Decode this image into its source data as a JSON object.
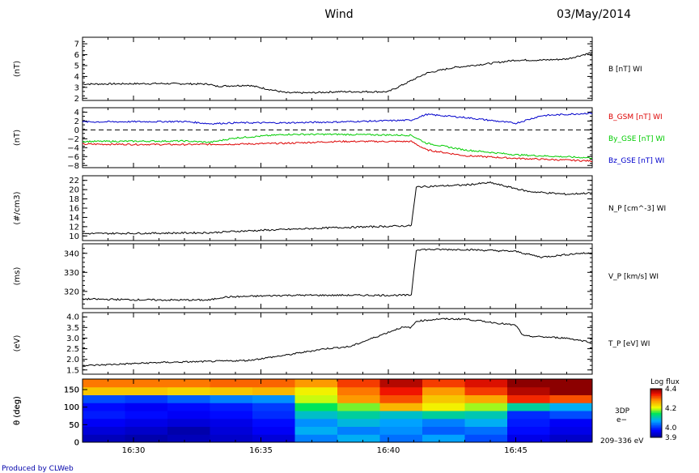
{
  "header": {
    "title": "Wind",
    "date": "03/May/2014"
  },
  "footer": {
    "credit": "Produced by CLWeb"
  },
  "chart_data": [
    {
      "type": "line",
      "ylabel": "(nT)",
      "ylim": [
        1.8,
        7.6
      ],
      "yticks": [
        "2",
        "3",
        "4",
        "5",
        "6",
        "7"
      ],
      "series": [
        {
          "name": "B [nT] WI",
          "color": "#000000",
          "x": [
            0,
            3,
            5,
            5.2,
            6.5,
            8,
            9,
            10,
            12,
            13.5,
            14.5,
            16,
            17,
            18,
            19,
            20
          ],
          "y": [
            3.3,
            3.35,
            3.3,
            3.1,
            3.2,
            2.5,
            2.5,
            2.6,
            2.6,
            4.3,
            4.8,
            5.2,
            5.5,
            5.5,
            5.6,
            6.2
          ]
        }
      ],
      "legend": [
        {
          "label": "B [nT] WI",
          "color": "#000000"
        }
      ]
    },
    {
      "type": "line",
      "ylabel": "(nT)",
      "ylim": [
        -8.5,
        5
      ],
      "yticks": [
        "4",
        "2",
        "0",
        "−2",
        "−4",
        "−6",
        "−8"
      ],
      "zero_line": true,
      "series": [
        {
          "name": "B_GSM [nT] WI",
          "color": "#dd0000",
          "x": [
            0,
            4,
            6,
            8,
            10,
            12.9,
            13.5,
            15,
            17,
            20
          ],
          "y": [
            -3.2,
            -3.3,
            -3.2,
            -3,
            -2.6,
            -2.6,
            -4.5,
            -5.8,
            -6.4,
            -7
          ]
        },
        {
          "name": "By_GSE [nT] WI",
          "color": "#00cc00",
          "x": [
            0,
            4,
            5,
            6,
            8,
            10,
            12.9,
            13.5,
            15,
            17,
            20
          ],
          "y": [
            -2.6,
            -2.5,
            -2.8,
            -1.8,
            -1,
            -1,
            -1.2,
            -3,
            -4.5,
            -5.6,
            -6.3
          ]
        },
        {
          "name": "Bz_GSE [nT] WI",
          "color": "#0000cc",
          "x": [
            0,
            4,
            5,
            6,
            8,
            10,
            12.9,
            13.5,
            15,
            17,
            18,
            20
          ],
          "y": [
            1.8,
            1.9,
            1.4,
            1.6,
            1.6,
            1.8,
            2.2,
            3.5,
            2.8,
            1.5,
            3.2,
            3.8
          ]
        }
      ],
      "legend": [
        {
          "label": "B_GSM [nT] WI",
          "color": "#dd0000"
        },
        {
          "label": "By_GSE [nT] WI",
          "color": "#00cc00"
        },
        {
          "label": "Bz_GSE [nT] WI",
          "color": "#0000cc"
        }
      ]
    },
    {
      "type": "line",
      "ylabel": "(#/cm3)",
      "ylim": [
        9,
        23
      ],
      "yticks": [
        "10",
        "12",
        "14",
        "16",
        "18",
        "20",
        "22"
      ],
      "series": [
        {
          "name": "N_P [cm^-3] WI",
          "color": "#000000",
          "x": [
            0,
            3,
            5,
            6,
            8,
            9,
            10,
            12.9,
            13.1,
            15,
            16,
            17.5,
            19,
            20
          ],
          "y": [
            10.5,
            10.6,
            10.7,
            11,
            11.4,
            11.6,
            11.8,
            12.2,
            20.6,
            21,
            21.5,
            19.6,
            19,
            19.3
          ]
        }
      ],
      "legend": [
        {
          "label": "N_P [cm^-3] WI",
          "color": "#000000"
        }
      ]
    },
    {
      "type": "line",
      "ylabel": "(ms)",
      "ylim": [
        311,
        345
      ],
      "yticks": [
        "320",
        "330",
        "340"
      ],
      "series": [
        {
          "name": "V_P [km/s] WI",
          "color": "#000000",
          "x": [
            0,
            3,
            5,
            5.5,
            8,
            10,
            12.9,
            13.1,
            15,
            17,
            18,
            19.5,
            20
          ],
          "y": [
            316,
            315.5,
            315.5,
            317,
            318,
            318,
            318,
            342,
            342,
            341,
            338,
            340,
            340
          ]
        }
      ],
      "legend": [
        {
          "label": "V_P [km/s] WI",
          "color": "#000000"
        }
      ]
    },
    {
      "type": "line",
      "ylabel": "(eV)",
      "ylim": [
        1.3,
        4.2
      ],
      "yticks": [
        "1.5",
        "2.0",
        "2.5",
        "3.0",
        "3.5",
        "4.0"
      ],
      "series": [
        {
          "name": "T_P [eV] WI",
          "color": "#000000",
          "x": [
            0,
            3,
            5,
            6.5,
            8,
            9.5,
            10.5,
            12.5,
            12.9,
            13.1,
            14,
            15,
            17,
            17.3,
            19,
            20
          ],
          "y": [
            1.7,
            1.85,
            1.9,
            1.95,
            2.2,
            2.5,
            2.6,
            3.5,
            3.5,
            3.8,
            3.9,
            3.9,
            3.6,
            3.1,
            3.0,
            2.8
          ]
        }
      ],
      "legend": [
        {
          "label": "T_P [eV] WI",
          "color": "#000000"
        }
      ]
    },
    {
      "type": "heatmap",
      "ylabel": "θ (deg)",
      "ylim": [
        0,
        180
      ],
      "yticks": [
        "0",
        "50",
        "100",
        "150"
      ],
      "xlim": [
        0,
        20
      ],
      "xticks": [
        "16:30",
        "16:35",
        "16:40",
        "16:45"
      ],
      "xtick_positions": [
        2,
        7,
        12,
        17
      ],
      "time_bins": 12,
      "angle_bins": 8,
      "z": [
        [
          3.93,
          3.92,
          3.93,
          3.94,
          3.95,
          4.05,
          4.08,
          4.04,
          4.07,
          4.02,
          3.96,
          3.94
        ],
        [
          3.95,
          3.94,
          3.92,
          3.95,
          3.97,
          4.08,
          4.05,
          4.06,
          4.03,
          4.04,
          3.98,
          3.96
        ],
        [
          3.97,
          3.96,
          3.95,
          3.96,
          3.98,
          4.06,
          4.09,
          4.07,
          4.05,
          4.08,
          3.99,
          3.97
        ],
        [
          3.99,
          3.98,
          3.97,
          3.98,
          4.0,
          4.1,
          4.12,
          4.1,
          4.12,
          4.11,
          4.0,
          4.02
        ],
        [
          3.98,
          3.97,
          3.98,
          3.99,
          4.01,
          4.15,
          4.18,
          4.26,
          4.22,
          4.19,
          4.12,
          4.08
        ],
        [
          4.02,
          4.01,
          4.03,
          4.05,
          4.06,
          4.2,
          4.28,
          4.32,
          4.25,
          4.27,
          4.34,
          4.32
        ],
        [
          4.25,
          4.25,
          4.24,
          4.25,
          4.26,
          4.22,
          4.3,
          4.35,
          4.28,
          4.33,
          4.38,
          4.4
        ],
        [
          4.3,
          4.3,
          4.3,
          4.31,
          4.31,
          4.28,
          4.33,
          4.38,
          4.33,
          4.36,
          4.42,
          4.42
        ]
      ],
      "side_labels": [
        "3DP",
        "e−",
        "209–336 eV"
      ],
      "colorbar": {
        "title": "Log flux",
        "ticks": [
          "4.4",
          "4.2",
          "4.0",
          "3.9"
        ],
        "min": 3.9,
        "max": 4.4
      }
    }
  ]
}
